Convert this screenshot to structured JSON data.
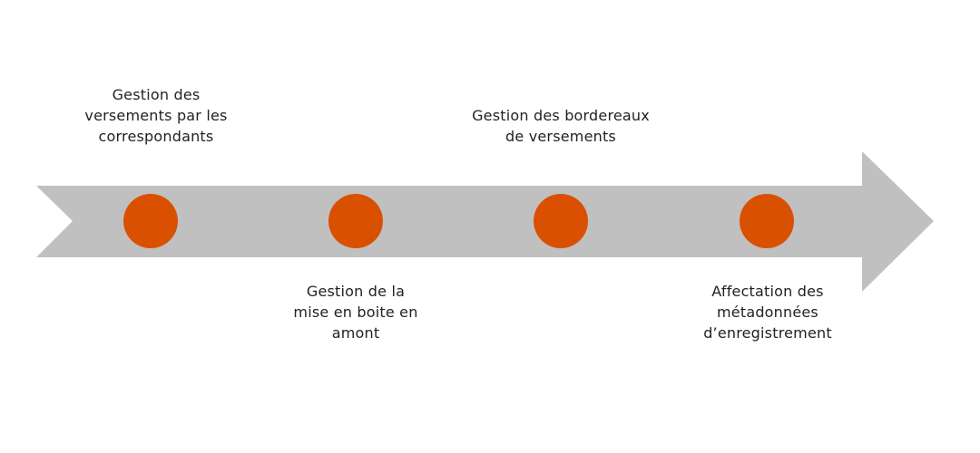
{
  "colors": {
    "arrow": "#c0c0c0",
    "milestone": "#d95100",
    "text": "#222222",
    "background": "#ffffff"
  },
  "steps": [
    {
      "lines": [
        "Gestion des",
        "versements par les",
        "correspondants"
      ],
      "position": "above"
    },
    {
      "lines": [
        "Gestion de la",
        "mise en boite en",
        "amont"
      ],
      "position": "below"
    },
    {
      "lines": [
        "Gestion des bordereaux",
        "de versements"
      ],
      "position": "above"
    },
    {
      "lines": [
        "Affectation des",
        "métadonnées",
        "d’enregistrement"
      ],
      "position": "below"
    }
  ]
}
